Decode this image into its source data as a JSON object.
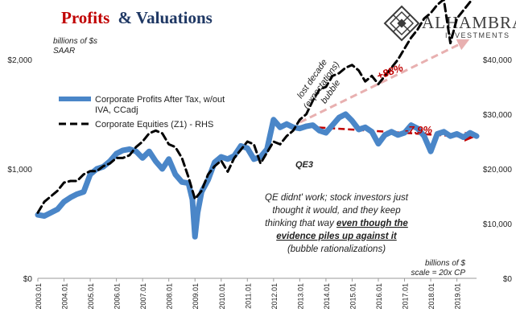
{
  "header": {
    "title_red": "Profits",
    "title_rest": "& Valuations",
    "brand_name": "ALHAMBRA",
    "brand_sub": "INVESTMENTS"
  },
  "colors": {
    "profits": "#4a86c8",
    "equities": "#000000",
    "title_red": "#c00000",
    "brand": "#3b3b3b",
    "annot_red": "#c00000",
    "trend_pink": "#e8b0b0",
    "grid": "#d9d9d9"
  },
  "chart_data": {
    "type": "line",
    "left_unit_label": [
      "billions of $s",
      "SAAR"
    ],
    "right_unit_label": [
      "billions of $",
      "scale = 20x CP"
    ],
    "y_left": {
      "min": 0,
      "max": 2500,
      "ticks": [
        0,
        1000,
        2000
      ],
      "tick_labels": [
        "$0",
        "$1,000",
        "$2,000"
      ]
    },
    "y_right": {
      "min": 0,
      "max": 50000,
      "ticks": [
        0,
        10000,
        20000,
        30000,
        40000
      ],
      "tick_labels": [
        "$0",
        "$10,000",
        "$20,000",
        "$30,000",
        "$40,000"
      ]
    },
    "x_range": [
      2003.0,
      2019.75
    ],
    "x_ticks": [
      {
        "value": 2003.0,
        "label": "2003.01"
      },
      {
        "value": 2004.0,
        "label": "2004.01"
      },
      {
        "value": 2005.0,
        "label": "2005.01"
      },
      {
        "value": 2006.0,
        "label": "2006.01"
      },
      {
        "value": 2007.0,
        "label": "2007.01"
      },
      {
        "value": 2008.0,
        "label": "2008.01"
      },
      {
        "value": 2009.0,
        "label": "2009.01"
      },
      {
        "value": 2010.0,
        "label": "2010.01"
      },
      {
        "value": 2011.0,
        "label": "2011.01"
      },
      {
        "value": 2012.0,
        "label": "2012.01"
      },
      {
        "value": 2013.0,
        "label": "2013.01"
      },
      {
        "value": 2014.0,
        "label": "2014.01"
      },
      {
        "value": 2015.0,
        "label": "2015.01"
      },
      {
        "value": 2016.0,
        "label": "2016.01"
      },
      {
        "value": 2017.0,
        "label": "2017.01"
      },
      {
        "value": 2018.0,
        "label": "2018.01"
      },
      {
        "value": 2019.0,
        "label": "2019.01"
      }
    ],
    "series": [
      {
        "name": "Corporate Profits After Tax, w/out IVA, CCadj",
        "axis": "left",
        "points": [
          [
            2003.0,
            580
          ],
          [
            2003.25,
            570
          ],
          [
            2003.5,
            600
          ],
          [
            2003.75,
            630
          ],
          [
            2004.0,
            700
          ],
          [
            2004.25,
            740
          ],
          [
            2004.5,
            770
          ],
          [
            2004.75,
            790
          ],
          [
            2005.0,
            950
          ],
          [
            2005.25,
            1000
          ],
          [
            2005.5,
            1020
          ],
          [
            2005.75,
            1070
          ],
          [
            2006.0,
            1140
          ],
          [
            2006.25,
            1170
          ],
          [
            2006.5,
            1180
          ],
          [
            2006.75,
            1160
          ],
          [
            2007.0,
            1100
          ],
          [
            2007.25,
            1160
          ],
          [
            2007.5,
            1070
          ],
          [
            2007.75,
            1000
          ],
          [
            2008.0,
            1090
          ],
          [
            2008.25,
            950
          ],
          [
            2008.5,
            880
          ],
          [
            2008.75,
            870
          ],
          [
            2008.9,
            720
          ],
          [
            2009.0,
            380
          ],
          [
            2009.1,
            600
          ],
          [
            2009.25,
            790
          ],
          [
            2009.5,
            900
          ],
          [
            2009.75,
            1060
          ],
          [
            2010.0,
            1110
          ],
          [
            2010.25,
            1090
          ],
          [
            2010.5,
            1120
          ],
          [
            2010.75,
            1210
          ],
          [
            2011.0,
            1190
          ],
          [
            2011.25,
            1090
          ],
          [
            2011.5,
            1110
          ],
          [
            2011.75,
            1180
          ],
          [
            2012.0,
            1450
          ],
          [
            2012.25,
            1380
          ],
          [
            2012.5,
            1410
          ],
          [
            2012.75,
            1380
          ],
          [
            2013.0,
            1370
          ],
          [
            2013.25,
            1390
          ],
          [
            2013.5,
            1400
          ],
          [
            2013.75,
            1350
          ],
          [
            2014.0,
            1330
          ],
          [
            2014.25,
            1400
          ],
          [
            2014.5,
            1470
          ],
          [
            2014.75,
            1500
          ],
          [
            2015.0,
            1440
          ],
          [
            2015.25,
            1360
          ],
          [
            2015.5,
            1380
          ],
          [
            2015.75,
            1340
          ],
          [
            2016.0,
            1230
          ],
          [
            2016.25,
            1310
          ],
          [
            2016.5,
            1340
          ],
          [
            2016.75,
            1310
          ],
          [
            2017.0,
            1330
          ],
          [
            2017.25,
            1400
          ],
          [
            2017.5,
            1370
          ],
          [
            2017.75,
            1300
          ],
          [
            2018.0,
            1160
          ],
          [
            2018.25,
            1320
          ],
          [
            2018.5,
            1340
          ],
          [
            2018.75,
            1300
          ],
          [
            2019.0,
            1320
          ],
          [
            2019.25,
            1290
          ],
          [
            2019.5,
            1330
          ],
          [
            2019.75,
            1300
          ]
        ]
      },
      {
        "name": "Corporate Equities (Z1) - RHS",
        "axis": "right",
        "points": [
          [
            2003.0,
            12000
          ],
          [
            2003.25,
            14000
          ],
          [
            2003.5,
            15000
          ],
          [
            2003.75,
            16000
          ],
          [
            2004.0,
            17500
          ],
          [
            2004.25,
            17800
          ],
          [
            2004.5,
            17800
          ],
          [
            2004.75,
            19000
          ],
          [
            2005.0,
            19600
          ],
          [
            2005.25,
            19600
          ],
          [
            2005.5,
            20500
          ],
          [
            2005.75,
            21000
          ],
          [
            2006.0,
            22000
          ],
          [
            2006.25,
            22000
          ],
          [
            2006.5,
            22500
          ],
          [
            2006.75,
            24000
          ],
          [
            2007.0,
            25000
          ],
          [
            2007.25,
            26500
          ],
          [
            2007.5,
            27000
          ],
          [
            2007.75,
            26500
          ],
          [
            2008.0,
            24500
          ],
          [
            2008.25,
            24000
          ],
          [
            2008.5,
            22000
          ],
          [
            2008.75,
            18500
          ],
          [
            2009.0,
            14500
          ],
          [
            2009.25,
            16000
          ],
          [
            2009.5,
            19000
          ],
          [
            2009.75,
            20500
          ],
          [
            2010.0,
            21500
          ],
          [
            2010.25,
            19500
          ],
          [
            2010.5,
            22000
          ],
          [
            2010.75,
            23500
          ],
          [
            2011.0,
            25000
          ],
          [
            2011.25,
            24500
          ],
          [
            2011.5,
            21000
          ],
          [
            2011.75,
            23000
          ],
          [
            2012.0,
            25000
          ],
          [
            2012.25,
            24500
          ],
          [
            2012.5,
            26000
          ],
          [
            2012.75,
            27000
          ],
          [
            2013.0,
            29000
          ],
          [
            2013.25,
            30000
          ],
          [
            2013.5,
            32500
          ],
          [
            2013.75,
            34500
          ],
          [
            2014.0,
            35000
          ],
          [
            2014.25,
            37000
          ],
          [
            2014.5,
            37500
          ],
          [
            2014.75,
            38500
          ],
          [
            2015.0,
            39000
          ],
          [
            2015.25,
            38000
          ],
          [
            2015.5,
            36000
          ],
          [
            2015.75,
            37000
          ],
          [
            2016.0,
            35500
          ],
          [
            2016.25,
            37000
          ],
          [
            2016.5,
            38500
          ],
          [
            2016.75,
            40000
          ],
          [
            2017.0,
            42000
          ],
          [
            2017.25,
            44000
          ],
          [
            2017.5,
            45500
          ],
          [
            2017.75,
            47500
          ],
          [
            2018.0,
            48500
          ],
          [
            2018.25,
            50000
          ],
          [
            2018.5,
            51000
          ],
          [
            2018.75,
            43000
          ],
          [
            2019.0,
            47500
          ],
          [
            2019.25,
            49000
          ],
          [
            2019.5,
            50500
          ],
          [
            2019.75,
            52000
          ]
        ]
      }
    ],
    "legend": [
      {
        "label_lines": [
          "Corporate Profits After Tax, w/out",
          "IVA, CCadj"
        ],
        "style": "solid-blue"
      },
      {
        "label_lines": [
          "Corporate Equities (Z1) - RHS"
        ],
        "style": "dashed-black"
      }
    ],
    "legend_position": "top-left",
    "grid": false,
    "annotations": {
      "bubble_label": [
        "lost decade",
        "(expectations)",
        "bubble"
      ],
      "qe3_label": "QE3",
      "equity_change": "+88%",
      "profit_change": "-7.9%",
      "note_lines": [
        "QE didnt' work; stock investors just",
        "thought it would, and they keep",
        "thinking that way ",
        "even though the",
        "evidence  piles up against it",
        "(bubble rationalizations)"
      ],
      "profit_trend": {
        "from": [
          2013.0,
          1390
        ],
        "to": [
          2019.6,
          1290
        ]
      },
      "equity_trend": {
        "from": [
          2013.0,
          28500
        ],
        "to": [
          2019.4,
          43500
        ]
      }
    }
  }
}
